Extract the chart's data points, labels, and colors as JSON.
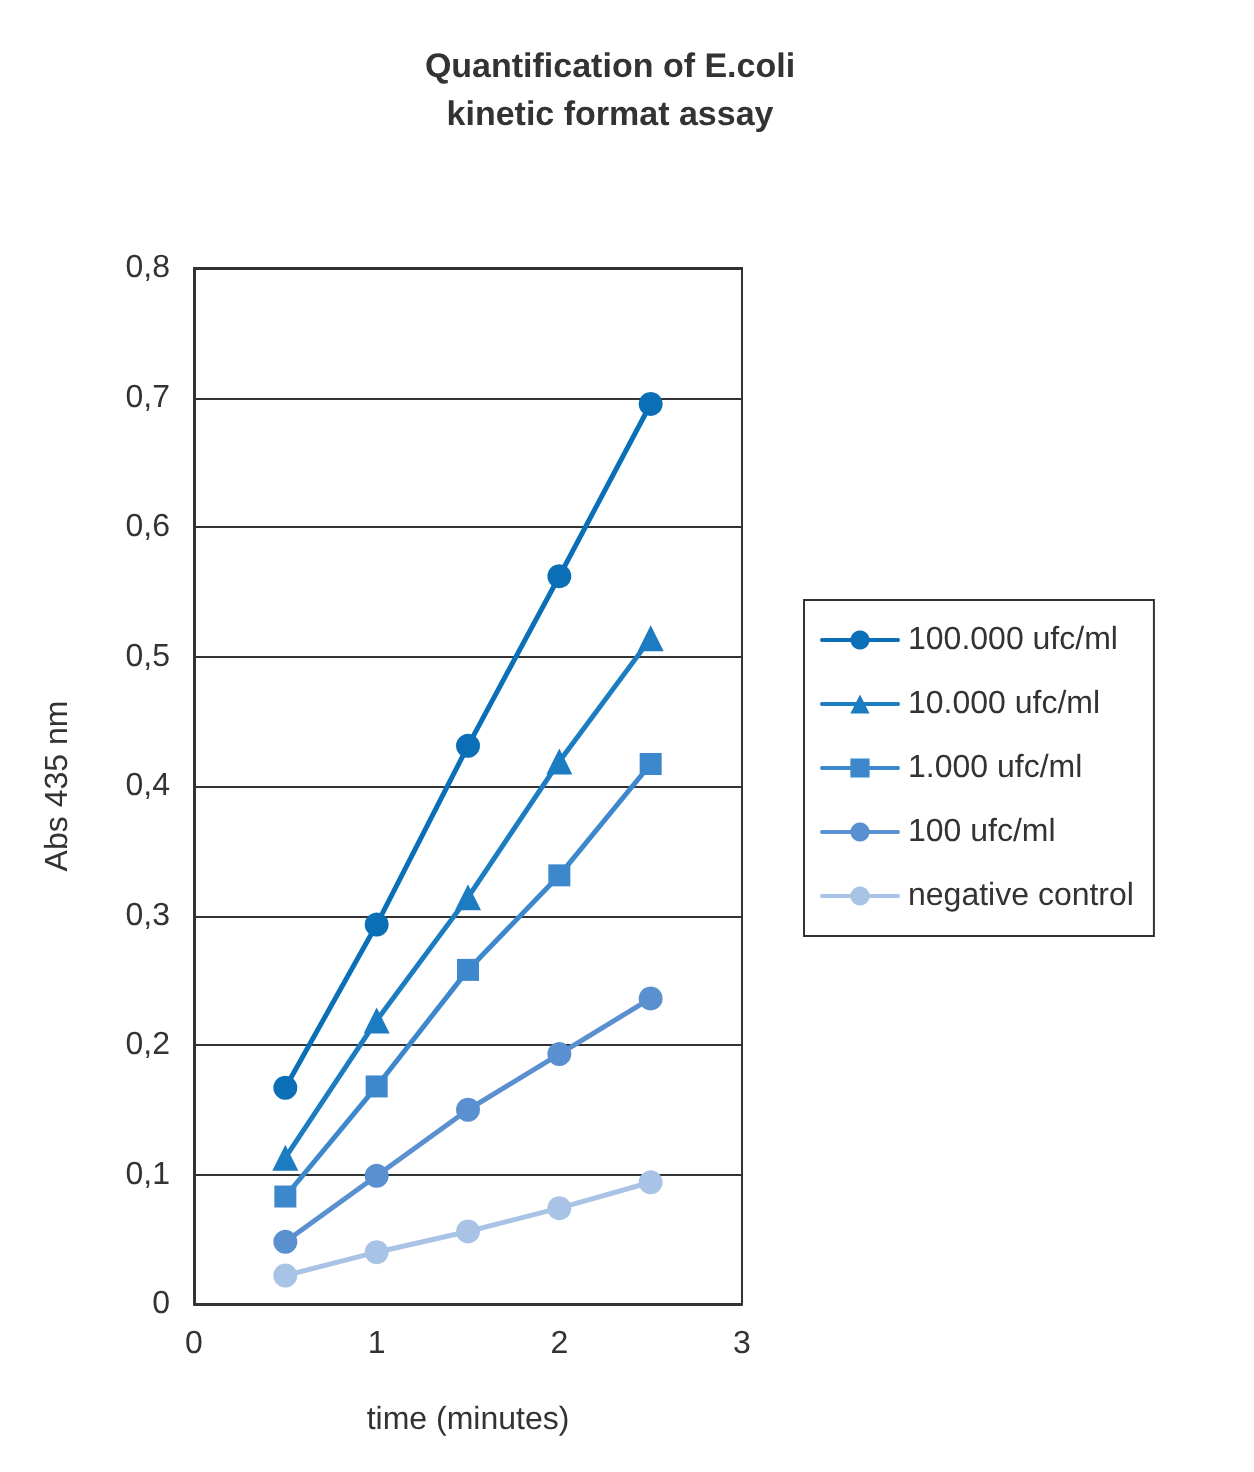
{
  "chart_data": {
    "type": "line",
    "title": "Quantification of E.coli\nkinetic format assay",
    "xlabel": "time (minutes)",
    "ylabel": "Abs 435 nm",
    "x": [
      0.5,
      1,
      1.5,
      2,
      2.5
    ],
    "series": [
      {
        "name": "100.000 ufc/ml",
        "color": "#0a6fb6",
        "marker": "circle",
        "values": [
          0.167,
          0.293,
          0.431,
          0.562,
          0.695
        ]
      },
      {
        "name": "10.000 ufc/ml",
        "color": "#1c7cc2",
        "marker": "triangle",
        "values": [
          0.113,
          0.219,
          0.314,
          0.419,
          0.514
        ]
      },
      {
        "name": "1.000 ufc/ml",
        "color": "#3d88cc",
        "marker": "square",
        "values": [
          0.083,
          0.168,
          0.258,
          0.331,
          0.417
        ]
      },
      {
        "name": "100 ufc/ml",
        "color": "#5a8fd0",
        "marker": "circle",
        "values": [
          0.048,
          0.099,
          0.15,
          0.193,
          0.236
        ]
      },
      {
        "name": "negative control",
        "color": "#a9c3e6",
        "marker": "circle",
        "values": [
          0.022,
          0.04,
          0.056,
          0.074,
          0.094
        ]
      }
    ],
    "xlim": [
      0,
      3
    ],
    "xticks": [
      0,
      1,
      2,
      3
    ],
    "ylim": [
      0,
      0.8
    ],
    "yticks": [
      {
        "value": 0,
        "label": "0"
      },
      {
        "value": 0.1,
        "label": "0,1"
      },
      {
        "value": 0.2,
        "label": "0,2"
      },
      {
        "value": 0.3,
        "label": "0,3"
      },
      {
        "value": 0.4,
        "label": "0,4"
      },
      {
        "value": 0.5,
        "label": "0,5"
      },
      {
        "value": 0.6,
        "label": "0,6"
      },
      {
        "value": 0.7,
        "label": "0,7"
      },
      {
        "value": 0.8,
        "label": "0,8"
      }
    ],
    "grid": "y",
    "legend": "right",
    "line_style": "solid"
  }
}
